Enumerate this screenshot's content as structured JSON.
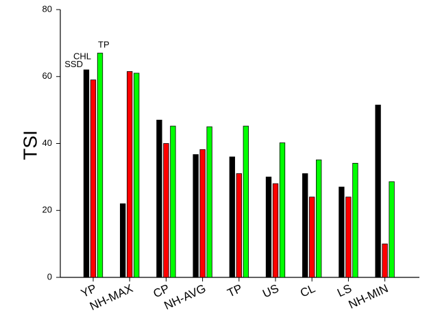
{
  "chart_data": {
    "type": "bar",
    "ylabel": "TSI",
    "xlabel": "",
    "ylim": [
      0,
      80
    ],
    "yticks": [
      0,
      20,
      40,
      60,
      80
    ],
    "categories": [
      "YP",
      "NH-MAX",
      "CP",
      "NH-AVG",
      "TP",
      "US",
      "CL",
      "LS",
      "NH-MIN"
    ],
    "series": [
      {
        "name": "SSD",
        "color": "#000000",
        "values": [
          62,
          22,
          47,
          36.7,
          36,
          30,
          31,
          27,
          51.5
        ]
      },
      {
        "name": "CHL",
        "color": "#ff0000",
        "values": [
          59,
          61.5,
          40,
          38.2,
          31,
          28,
          24,
          24,
          10
        ]
      },
      {
        "name": "TP",
        "color": "#00ff00",
        "values": [
          67,
          61,
          45.2,
          45,
          45.2,
          40.2,
          35.1,
          34.1,
          28.6
        ]
      }
    ],
    "annotations": [
      "SSD",
      "CHL",
      "TP"
    ],
    "legend": "inline labels above first group",
    "grid": false
  }
}
